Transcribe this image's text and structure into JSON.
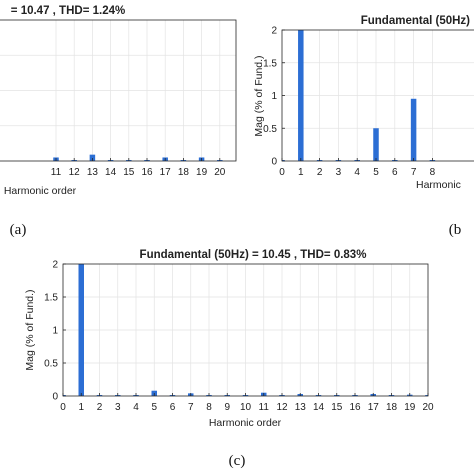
{
  "chart_data": [
    {
      "type": "bar",
      "panel": "a",
      "title": "= 10.47 , THD= 1.24%",
      "xlabel": "Harmonic order",
      "ylabel": "",
      "x": [
        11,
        12,
        13,
        14,
        15,
        16,
        17,
        18,
        19,
        20
      ],
      "values": [
        0.05,
        0.0,
        0.09,
        0.0,
        0.0,
        0.0,
        0.05,
        0.0,
        0.05,
        0.0
      ],
      "x_ticks": [
        11,
        12,
        13,
        14,
        15,
        16,
        17,
        18,
        19,
        20
      ],
      "caption": "(a)",
      "bar_color": "#2c6ed4"
    },
    {
      "type": "bar",
      "panel": "b",
      "title": "Fundamental (50Hz)",
      "xlabel": "Harmonic",
      "ylabel": "Mag (% of Fund.)",
      "x": [
        0,
        1,
        2,
        3,
        4,
        5,
        6,
        7,
        8
      ],
      "values": [
        0.0,
        2.0,
        0.0,
        0.0,
        0.0,
        0.5,
        0.0,
        0.95,
        0.0
      ],
      "x_ticks": [
        0,
        1,
        2,
        3,
        4,
        5,
        6,
        7,
        8
      ],
      "y_ticks": [
        0,
        0.5,
        1,
        1.5,
        2
      ],
      "y_tick_labels": [
        "0",
        "0.5",
        "1",
        "1.5",
        "2"
      ],
      "ylim": [
        0,
        2
      ],
      "caption": "(b",
      "bar_color": "#2c6ed4"
    },
    {
      "type": "bar",
      "panel": "c",
      "title": "Fundamental (50Hz) = 10.45 , THD= 0.83%",
      "xlabel": "Harmonic order",
      "ylabel": "Mag (% of Fund.)",
      "x": [
        0,
        1,
        2,
        3,
        4,
        5,
        6,
        7,
        8,
        9,
        10,
        11,
        12,
        13,
        14,
        15,
        16,
        17,
        18,
        19,
        20
      ],
      "values": [
        0.0,
        2.0,
        0.0,
        0.0,
        0.0,
        0.08,
        0.0,
        0.04,
        0.0,
        0.0,
        0.0,
        0.05,
        0.0,
        0.03,
        0.0,
        0.0,
        0.0,
        0.03,
        0.0,
        0.02,
        0.0
      ],
      "x_ticks": [
        0,
        1,
        2,
        3,
        4,
        5,
        6,
        7,
        8,
        9,
        10,
        11,
        12,
        13,
        14,
        15,
        16,
        17,
        18,
        19,
        20
      ],
      "y_ticks": [
        0,
        0.5,
        1,
        1.5,
        2
      ],
      "y_tick_labels": [
        "0",
        "0.5",
        "1",
        "1.5",
        "2"
      ],
      "ylim": [
        0,
        2
      ],
      "caption": "(c)",
      "bar_color": "#2c6ed4"
    }
  ]
}
